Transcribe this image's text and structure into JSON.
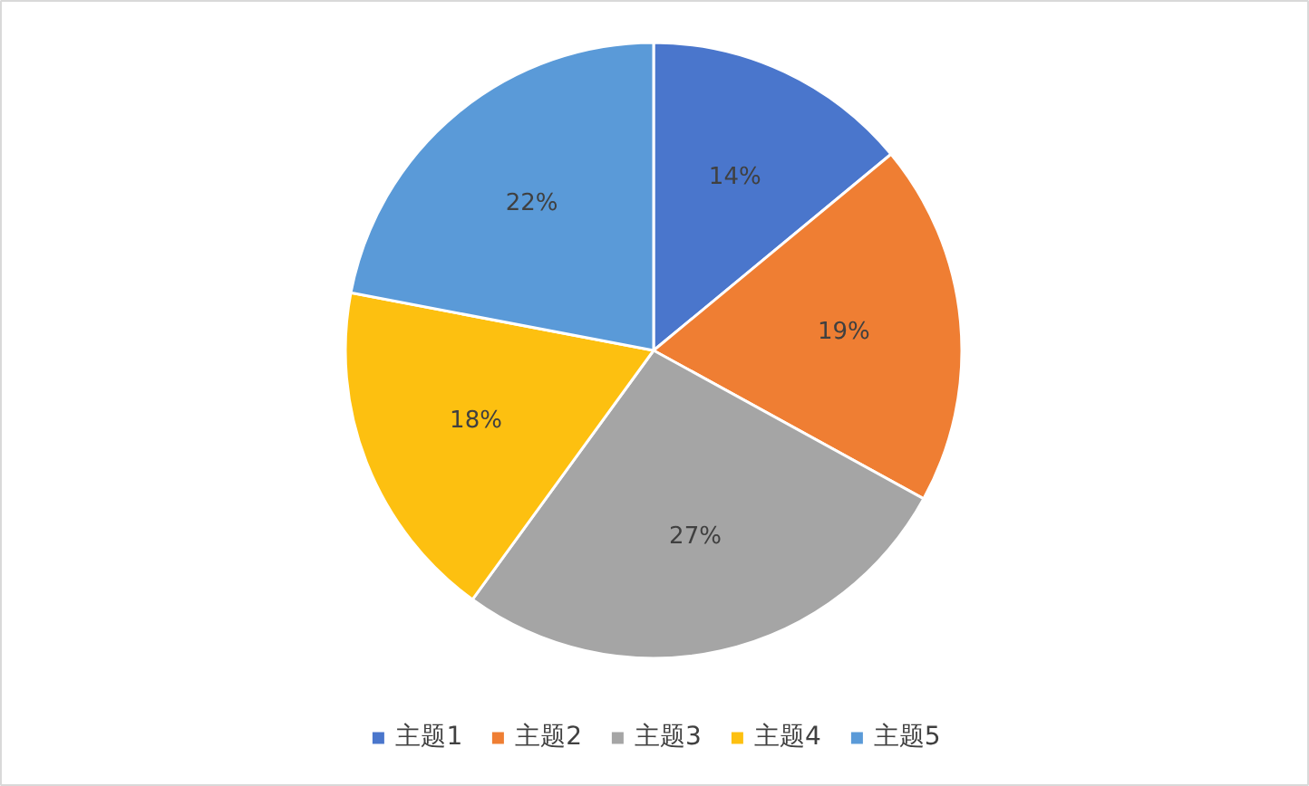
{
  "chart_data": {
    "type": "pie",
    "categories": [
      "主题1",
      "主题2",
      "主题3",
      "主题4",
      "主题5"
    ],
    "values": [
      14,
      19,
      27,
      18,
      22
    ],
    "colors": [
      "#4a76cc",
      "#ef7e33",
      "#a5a5a5",
      "#fdc010",
      "#5a9ad8"
    ],
    "value_labels": [
      "14%",
      "19%",
      "27%",
      "18%",
      "22%"
    ],
    "legend": "bottom"
  }
}
